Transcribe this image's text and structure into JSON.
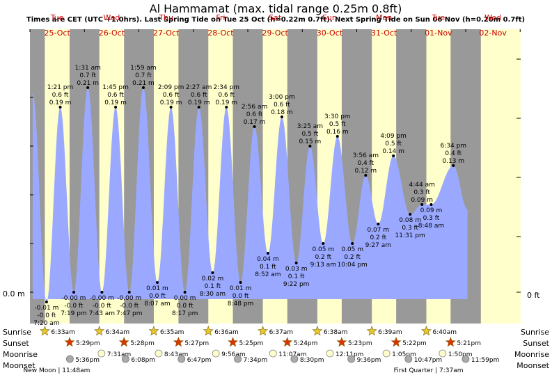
{
  "chart_data": {
    "type": "area",
    "title": "Al Hammamat (max. tidal range 0.25m 0.8ft)",
    "subtitle": "Times are CET (UTC +1.0hrs). Last Spring Tide on Tue 25 Oct (h=0.22m 0.7ft). Next Spring Tide on Sun 06 Nov (h=0.20m 0.7ft)",
    "days": [
      {
        "name": "Tue",
        "date": "25-Oct"
      },
      {
        "name": "Wed",
        "date": "26-Oct"
      },
      {
        "name": "Thu",
        "date": "27-Oct"
      },
      {
        "name": "Fri",
        "date": "28-Oct"
      },
      {
        "name": "Sat",
        "date": "29-Oct"
      },
      {
        "name": "Sun",
        "date": "30-Oct"
      },
      {
        "name": "Mon",
        "date": "31-Oct"
      },
      {
        "name": "Tue",
        "date": "01-Nov"
      },
      {
        "name": "Wed",
        "date": "02-Nov"
      }
    ],
    "y_axis_left": "0.0 m",
    "y_axis_right": "0 ft",
    "tides": [
      {
        "day": 0,
        "time": "7:20 am",
        "h": -0.01,
        "m": "-0.01 m",
        "ft": "-0.0 ft",
        "type": "low"
      },
      {
        "day": 0,
        "time": "1:21 pm",
        "h": 0.19,
        "m": "0.19 m",
        "ft": "0.6 ft",
        "type": "high"
      },
      {
        "day": 0,
        "time": "7:19 pm",
        "h": -0.0,
        "m": "-0.00 m",
        "ft": "-0.0 ft",
        "type": "low"
      },
      {
        "day": 1,
        "time": "1:31 am",
        "h": 0.21,
        "m": "0.21 m",
        "ft": "0.7 ft",
        "type": "high"
      },
      {
        "day": 1,
        "time": "7:43 am",
        "h": -0.0,
        "m": "-0.00 m",
        "ft": "-0.0 ft",
        "type": "low"
      },
      {
        "day": 1,
        "time": "1:45 pm",
        "h": 0.19,
        "m": "0.19 m",
        "ft": "0.6 ft",
        "type": "high"
      },
      {
        "day": 1,
        "time": "7:47 pm",
        "h": -0.0,
        "m": "-0.00 m",
        "ft": "-0.0 ft",
        "type": "low"
      },
      {
        "day": 2,
        "time": "1:59 am",
        "h": 0.21,
        "m": "0.21 m",
        "ft": "0.7 ft",
        "type": "high"
      },
      {
        "day": 2,
        "time": "8:07 am",
        "h": 0.01,
        "m": "0.01 m",
        "ft": "0.0 ft",
        "type": "low"
      },
      {
        "day": 2,
        "time": "2:09 pm",
        "h": 0.19,
        "m": "0.19 m",
        "ft": "0.6 ft",
        "type": "high"
      },
      {
        "day": 2,
        "time": "8:17 pm",
        "h": 0.0,
        "m": "0.00 m",
        "ft": "0.0 ft",
        "type": "low"
      },
      {
        "day": 3,
        "time": "2:27 am",
        "h": 0.19,
        "m": "0.19 m",
        "ft": "0.6 ft",
        "type": "high"
      },
      {
        "day": 3,
        "time": "8:30 am",
        "h": 0.02,
        "m": "0.02 m",
        "ft": "0.1 ft",
        "type": "low"
      },
      {
        "day": 3,
        "time": "2:34 pm",
        "h": 0.19,
        "m": "0.19 m",
        "ft": "0.6 ft",
        "type": "high"
      },
      {
        "day": 3,
        "time": "8:48 pm",
        "h": 0.01,
        "m": "0.01 m",
        "ft": "0.0 ft",
        "type": "low"
      },
      {
        "day": 4,
        "time": "2:56 am",
        "h": 0.17,
        "m": "0.17 m",
        "ft": "0.6 ft",
        "type": "high"
      },
      {
        "day": 4,
        "time": "8:52 am",
        "h": 0.04,
        "m": "0.04 m",
        "ft": "0.1 ft",
        "type": "low"
      },
      {
        "day": 4,
        "time": "3:00 pm",
        "h": 0.18,
        "m": "0.18 m",
        "ft": "0.6 ft",
        "type": "high"
      },
      {
        "day": 4,
        "time": "9:22 pm",
        "h": 0.03,
        "m": "0.03 m",
        "ft": "0.1 ft",
        "type": "low"
      },
      {
        "day": 5,
        "time": "3:25 am",
        "h": 0.15,
        "m": "0.15 m",
        "ft": "0.5 ft",
        "type": "high"
      },
      {
        "day": 5,
        "time": "9:13 am",
        "h": 0.05,
        "m": "0.05 m",
        "ft": "0.2 ft",
        "type": "low"
      },
      {
        "day": 5,
        "time": "3:30 pm",
        "h": 0.16,
        "m": "0.16 m",
        "ft": "0.5 ft",
        "type": "high"
      },
      {
        "day": 5,
        "time": "10:04 pm",
        "h": 0.05,
        "m": "0.05 m",
        "ft": "0.2 ft",
        "type": "low"
      },
      {
        "day": 6,
        "time": "3:56 am",
        "h": 0.12,
        "m": "0.12 m",
        "ft": "0.4 ft",
        "type": "high"
      },
      {
        "day": 6,
        "time": "9:27 am",
        "h": 0.07,
        "m": "0.07 m",
        "ft": "0.2 ft",
        "type": "low"
      },
      {
        "day": 6,
        "time": "4:09 pm",
        "h": 0.14,
        "m": "0.14 m",
        "ft": "0.5 ft",
        "type": "high"
      },
      {
        "day": 6,
        "time": "11:31 pm",
        "h": 0.08,
        "m": "0.08 m",
        "ft": "0.3 ft",
        "type": "low"
      },
      {
        "day": 7,
        "time": "4:44 am",
        "h": 0.09,
        "m": "0.09 m",
        "ft": "0.3 ft",
        "type": "high"
      },
      {
        "day": 7,
        "time": "8:48 am",
        "h": 0.09,
        "m": "0.09 m",
        "ft": "0.3 ft",
        "type": "low"
      },
      {
        "day": 7,
        "time": "6:34 pm",
        "h": 0.13,
        "m": "0.13 m",
        "ft": "0.4 ft",
        "type": "high"
      }
    ],
    "row_labels": [
      "Sunrise",
      "Sunset",
      "Moonrise",
      "Moonset"
    ],
    "sunrise": [
      "6:33am",
      "6:34am",
      "6:35am",
      "6:36am",
      "6:37am",
      "6:38am",
      "6:39am",
      "6:40am"
    ],
    "sunset": [
      "5:29pm",
      "5:28pm",
      "5:27pm",
      "5:25pm",
      "5:24pm",
      "5:23pm",
      "5:22pm",
      "5:21pm"
    ],
    "sunrise_hours": [
      6.55,
      6.57,
      6.58,
      6.6,
      6.62,
      6.63,
      6.65,
      6.67
    ],
    "sunset_hours": [
      17.48,
      17.47,
      17.45,
      17.42,
      17.4,
      17.38,
      17.37,
      17.35
    ],
    "moonrise": [
      {
        "day": 1,
        "time": "7:31am",
        "hour": 7.52
      },
      {
        "day": 2,
        "time": "8:43am",
        "hour": 8.72
      },
      {
        "day": 3,
        "time": "9:56am",
        "hour": 9.93
      },
      {
        "day": 4,
        "time": "11:07am",
        "hour": 11.12
      },
      {
        "day": 5,
        "time": "12:11pm",
        "hour": 12.18
      },
      {
        "day": 6,
        "time": "1:05pm",
        "hour": 13.08
      },
      {
        "day": 7,
        "time": "1:50pm",
        "hour": 13.83
      }
    ],
    "moonset": [
      {
        "day": 0,
        "time": "5:36pm",
        "hour": 17.6
      },
      {
        "day": 1,
        "time": "6:08pm",
        "hour": 18.13
      },
      {
        "day": 2,
        "time": "6:47pm",
        "hour": 18.78
      },
      {
        "day": 3,
        "time": "7:34pm",
        "hour": 19.57
      },
      {
        "day": 4,
        "time": "8:30pm",
        "hour": 20.5
      },
      {
        "day": 5,
        "time": "9:36pm",
        "hour": 21.6
      },
      {
        "day": 6,
        "time": "10:47pm",
        "hour": 22.78
      },
      {
        "day": 7,
        "time": "11:59pm",
        "hour": 23.98
      }
    ],
    "moon_phases": [
      {
        "label": "New Moon | 11:48am",
        "day": 0,
        "hour": 11.8
      },
      {
        "label": "First Quarter | 7:37am",
        "day": 7,
        "hour": 7.62
      }
    ],
    "colors": {
      "night": "#999999",
      "day": "#ffffcc",
      "tide": "#9aa9ff",
      "dot": "#000000",
      "sun_rise": "#e8c830",
      "sun_set": "#dd3300",
      "moon": "#aaaaaa",
      "moonrise": "#ffffcc",
      "day_label": "#cc0000"
    }
  }
}
